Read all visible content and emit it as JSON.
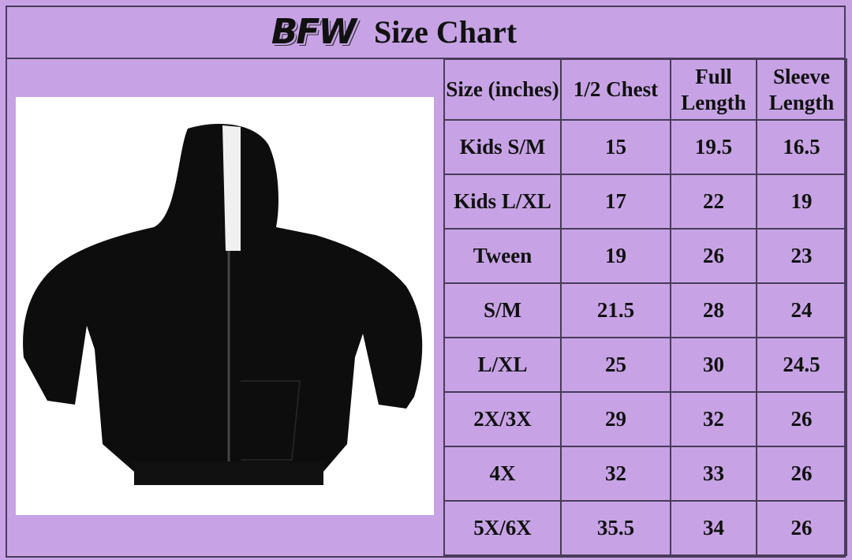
{
  "logo": "BFW",
  "title": "Size Chart",
  "image": {
    "subject": "black zip-up hoodie",
    "colors": {
      "body": "#0d0d0d",
      "lining": "#f2f2f2"
    }
  },
  "colors": {
    "background": "#c7a3e5",
    "border": "#4a3b58"
  },
  "table": {
    "headers": [
      "Size (inches)",
      "1/2 Chest",
      "Full Length",
      "Sleeve Length"
    ],
    "rows": [
      [
        "Kids S/M",
        "15",
        "19.5",
        "16.5"
      ],
      [
        "Kids L/XL",
        "17",
        "22",
        "19"
      ],
      [
        "Tween",
        "19",
        "26",
        "23"
      ],
      [
        "S/M",
        "21.5",
        "28",
        "24"
      ],
      [
        "L/XL",
        "25",
        "30",
        "24.5"
      ],
      [
        "2X/3X",
        "29",
        "32",
        "26"
      ],
      [
        "4X",
        "32",
        "33",
        "26"
      ],
      [
        "5X/6X",
        "35.5",
        "34",
        "26"
      ]
    ]
  }
}
